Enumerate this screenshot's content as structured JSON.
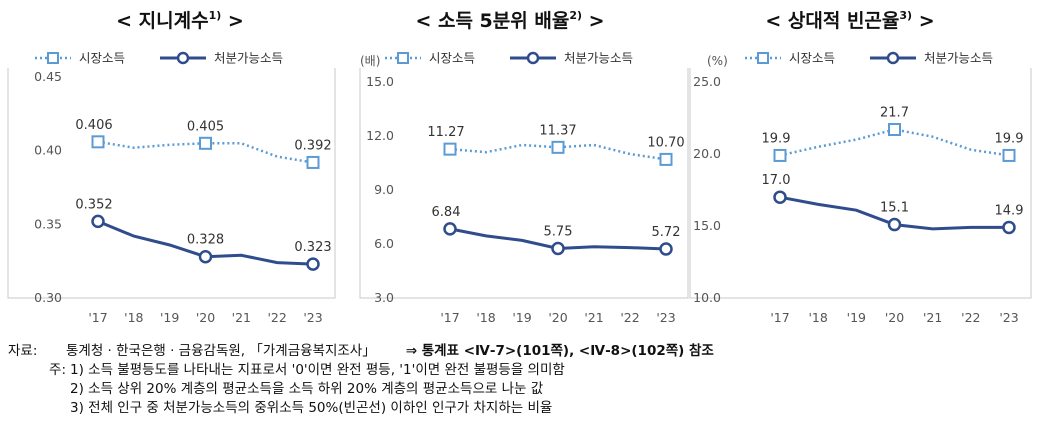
{
  "chart_data": [
    {
      "type": "line",
      "title": "< 지니계수",
      "title_suffix": " >",
      "title_note": "1)",
      "unit": "",
      "categories": [
        "'17",
        "'18",
        "'19",
        "'20",
        "'21",
        "'22",
        "'23"
      ],
      "ylim": [
        0.3,
        0.45
      ],
      "yticks": [
        "0.30",
        "0.35",
        "0.40",
        "0.45"
      ],
      "series": [
        {
          "name": "시장소득",
          "style": "dotted-square",
          "color": "#5b9bd5",
          "values": [
            0.406,
            0.402,
            0.404,
            0.405,
            0.405,
            0.396,
            0.392
          ],
          "labels": [
            "0.406",
            null,
            null,
            "0.405",
            null,
            null,
            "0.392"
          ]
        },
        {
          "name": "처분가능소득",
          "style": "solid-circle",
          "color": "#2f4d8c",
          "values": [
            0.352,
            0.342,
            0.336,
            0.328,
            0.329,
            0.324,
            0.323
          ],
          "labels": [
            "0.352",
            null,
            null,
            "0.328",
            null,
            null,
            "0.323"
          ]
        }
      ]
    },
    {
      "type": "line",
      "title": "< 소득 5분위 배율",
      "title_suffix": " >",
      "title_note": "2)",
      "unit": "(배)",
      "categories": [
        "'17",
        "'18",
        "'19",
        "'20",
        "'21",
        "'22",
        "'23"
      ],
      "ylim": [
        3.0,
        15.0
      ],
      "yticks": [
        "3.0",
        "6.0",
        "9.0",
        "12.0",
        "15.0"
      ],
      "series": [
        {
          "name": "시장소득",
          "style": "dotted-square",
          "color": "#5b9bd5",
          "values": [
            11.27,
            11.1,
            11.5,
            11.37,
            11.5,
            11.0,
            10.7
          ],
          "labels": [
            "11.27",
            null,
            null,
            "11.37",
            null,
            null,
            "10.70"
          ]
        },
        {
          "name": "처분가능소득",
          "style": "solid-circle",
          "color": "#2f4d8c",
          "values": [
            6.84,
            6.45,
            6.2,
            5.75,
            5.85,
            5.8,
            5.72
          ],
          "labels": [
            "6.84",
            null,
            null,
            "5.75",
            null,
            null,
            "5.72"
          ]
        }
      ]
    },
    {
      "type": "line",
      "title": "< 상대적 빈곤율",
      "title_suffix": " >",
      "title_note": "3)",
      "unit": "(%)",
      "categories": [
        "'17",
        "'18",
        "'19",
        "'20",
        "'21",
        "'22",
        "'23"
      ],
      "ylim": [
        10.0,
        25.0
      ],
      "yticks": [
        "10.0",
        "15.0",
        "20.0",
        "25.0"
      ],
      "series": [
        {
          "name": "시장소득",
          "style": "dotted-square",
          "color": "#5b9bd5",
          "values": [
            19.9,
            20.5,
            21.0,
            21.7,
            21.2,
            20.3,
            19.9
          ],
          "labels": [
            "19.9",
            null,
            null,
            "21.7",
            null,
            null,
            "19.9"
          ]
        },
        {
          "name": "처분가능소득",
          "style": "solid-circle",
          "color": "#2f4d8c",
          "values": [
            17.0,
            16.5,
            16.1,
            15.1,
            14.8,
            14.9,
            14.9
          ],
          "labels": [
            "17.0",
            null,
            null,
            "15.1",
            null,
            null,
            "14.9"
          ]
        }
      ]
    }
  ],
  "notes": {
    "source_label": "자료:",
    "source_text": "통계청 · 한국은행 · 금융감독원, 「가계금융복지조사」",
    "xref_text": "⇒ 통계표 <Ⅳ-7>(101쪽), <Ⅳ-8>(102쪽) 참조",
    "notes_label": "주:",
    "items": [
      "1) 소득 불평등도를 나타내는 지표로서 '0'이면 완전 평등, '1'이면 완전 불평등을 의미함",
      "2) 소득 상위 20% 계층의 평균소득을 소득 하위 20% 계층의 평균소득으로 나눈 값",
      "3) 전체 인구 중 처분가능소득의 중위소득 50%(빈곤선) 이하인 인구가 차지하는 비율"
    ]
  }
}
